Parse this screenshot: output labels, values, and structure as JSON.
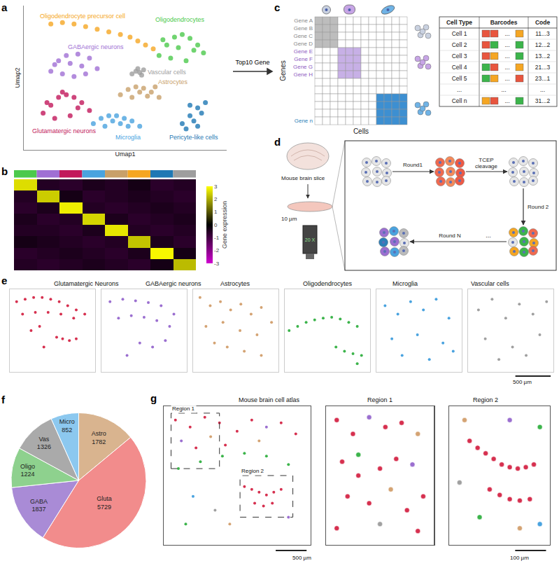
{
  "chart_data": [
    {
      "letter": "a",
      "type": "scatter",
      "xlabel": "Umap1",
      "ylabel": "Umap2",
      "xlim": [
        0,
        105
      ],
      "ylim": [
        0,
        110
      ],
      "tick_labels": false,
      "grid": false,
      "marker": "dot",
      "series": [
        {
          "name": "Oligodendrocyte precursor cell",
          "color": "#f5a623",
          "x": [
            14,
            20,
            26,
            32,
            38,
            44,
            50,
            55,
            59,
            63,
            67
          ],
          "y": [
            96,
            97,
            96,
            94,
            92,
            90,
            88,
            86,
            83,
            80,
            77
          ]
        },
        {
          "name": "Oligodendrocytes",
          "color": "#4cc94c",
          "x": [
            70,
            74,
            78,
            82,
            86,
            90,
            93,
            76,
            84,
            88,
            80,
            72
          ],
          "y": [
            72,
            80,
            86,
            88,
            85,
            80,
            74,
            70,
            68,
            76,
            78,
            84
          ]
        },
        {
          "name": "GABAergic neurons",
          "color": "#a06fd4",
          "x": [
            14,
            18,
            22,
            28,
            34,
            38,
            20,
            26,
            32,
            16,
            30,
            24
          ],
          "y": [
            60,
            68,
            72,
            73,
            70,
            62,
            58,
            56,
            58,
            65,
            64,
            66
          ]
        },
        {
          "name": "Vascular cells",
          "color": "#9e9e9e",
          "x": [
            56,
            58,
            60,
            62,
            59,
            61
          ],
          "y": [
            58,
            60,
            59,
            61,
            62,
            57
          ]
        },
        {
          "name": "Astrocytes",
          "color": "#c8a06a",
          "x": [
            50,
            54,
            58,
            62,
            66,
            70,
            56,
            64,
            60,
            68
          ],
          "y": [
            42,
            46,
            48,
            47,
            44,
            40,
            40,
            41,
            44,
            48
          ]
        },
        {
          "name": "Glutamatergic neurons",
          "color": "#c2185b",
          "x": [
            10,
            14,
            18,
            22,
            26,
            30,
            34,
            16,
            24,
            28,
            20,
            12
          ],
          "y": [
            28,
            34,
            40,
            42,
            40,
            36,
            30,
            24,
            26,
            32,
            44,
            36
          ]
        },
        {
          "name": "Microglia",
          "color": "#4aa3df",
          "x": [
            36,
            40,
            44,
            48,
            52,
            56,
            60,
            42,
            50,
            46,
            54
          ],
          "y": [
            20,
            24,
            26,
            26,
            24,
            22,
            18,
            18,
            20,
            22,
            18
          ]
        },
        {
          "name": "Pericyte-like cells",
          "color": "#1f78b4",
          "x": [
            82,
            86,
            90,
            94,
            84,
            88,
            92,
            86,
            90
          ],
          "y": [
            20,
            26,
            32,
            36,
            16,
            22,
            28,
            34,
            18
          ]
        }
      ]
    },
    {
      "letter": "b",
      "type": "heatmap",
      "colorbar_title": "Gene expression",
      "tick_labels": false,
      "z": [
        [
          2.6,
          -0.5,
          -0.6,
          -0.4,
          -0.5,
          -0.3,
          -0.6,
          -0.5
        ],
        [
          -0.5,
          2.4,
          -0.3,
          -0.6,
          -0.5,
          -0.4,
          -0.5,
          -0.6
        ],
        [
          -0.6,
          -0.4,
          2.8,
          -0.5,
          -0.6,
          -0.5,
          -0.4,
          -0.5
        ],
        [
          -0.4,
          -0.6,
          -0.5,
          2.5,
          -0.4,
          -0.6,
          -0.5,
          -0.4
        ],
        [
          -0.5,
          -0.5,
          -0.6,
          -0.4,
          2.7,
          -0.5,
          -0.6,
          -0.5
        ],
        [
          -0.3,
          -0.4,
          -0.5,
          -0.6,
          -0.5,
          2.3,
          -0.4,
          -0.6
        ],
        [
          -0.6,
          -0.5,
          -0.4,
          -0.5,
          -0.6,
          -0.4,
          2.9,
          -0.3
        ],
        [
          -0.5,
          -0.6,
          -0.5,
          -0.4,
          -0.5,
          -0.6,
          -0.3,
          2.2
        ]
      ],
      "zlim": [
        -3,
        3
      ],
      "zticks": [
        -3,
        -2,
        -1,
        0,
        1,
        2,
        3
      ],
      "column_colors": [
        "#4cc94c",
        "#a06fd4",
        "#c2185b",
        "#4aa3df",
        "#c8a06a",
        "#f5a623",
        "#1f78b4",
        "#9e9e9e"
      ]
    },
    {
      "letter": "e",
      "type": "scatter",
      "xlim": [
        0,
        100
      ],
      "ylim": [
        0,
        100
      ],
      "tick_labels": false,
      "marker": "dot",
      "scale_bar": "500 µm",
      "panels": [
        {
          "title": "Glutamatergic Neurons",
          "color": "#d6304f",
          "x": [
            8,
            18,
            28,
            38,
            48,
            58,
            68,
            78,
            88,
            15,
            30,
            45,
            60,
            75,
            55,
            62,
            70,
            78,
            40,
            25,
            35
          ],
          "y": [
            85,
            88,
            90,
            90,
            88,
            85,
            80,
            75,
            70,
            70,
            72,
            72,
            70,
            65,
            42,
            40,
            38,
            40,
            30,
            50,
            55
          ]
        },
        {
          "title": "GABAergic neurons",
          "color": "#9b6fd0",
          "x": [
            10,
            25,
            40,
            55,
            70,
            85,
            20,
            35,
            50,
            65,
            80,
            45,
            60,
            75,
            30
          ],
          "y": [
            85,
            88,
            86,
            84,
            80,
            70,
            65,
            68,
            66,
            62,
            55,
            35,
            30,
            38,
            20
          ]
        },
        {
          "title": "Astrocytes",
          "color": "#d4a373",
          "x": [
            8,
            20,
            32,
            44,
            56,
            68,
            80,
            92,
            15,
            35,
            55,
            75,
            40,
            60,
            80,
            25
          ],
          "y": [
            90,
            80,
            85,
            75,
            82,
            70,
            78,
            60,
            55,
            60,
            50,
            45,
            30,
            25,
            20,
            35
          ]
        },
        {
          "title": "Oligodendrocytes",
          "color": "#3cb44b",
          "x": [
            5,
            15,
            25,
            35,
            45,
            55,
            65,
            75,
            85,
            60,
            70,
            80,
            90,
            85
          ],
          "y": [
            50,
            55,
            60,
            63,
            65,
            66,
            64,
            60,
            55,
            30,
            25,
            22,
            20,
            10
          ]
        },
        {
          "title": "Microglia",
          "color": "#4aa3df",
          "x": [
            10,
            25,
            40,
            55,
            70,
            85,
            18,
            48,
            78,
            30,
            62,
            90
          ],
          "y": [
            80,
            70,
            85,
            75,
            88,
            65,
            40,
            45,
            35,
            20,
            15,
            25
          ]
        },
        {
          "title": "Vascular cells",
          "color": "#a0a0a0",
          "x": [
            12,
            28,
            44,
            60,
            76,
            92,
            20,
            52,
            84,
            36,
            68
          ],
          "y": [
            75,
            88,
            65,
            82,
            70,
            85,
            40,
            30,
            45,
            15,
            20
          ]
        }
      ]
    },
    {
      "letter": "f",
      "type": "pie",
      "data_labels": true,
      "categories": [
        "Astro",
        "Gluta",
        "GABA",
        "Oligo",
        "Vas",
        "Micro"
      ],
      "values": [
        1782,
        5729,
        1837,
        1224,
        1326,
        852
      ],
      "colors": [
        "#d9b48f",
        "#f28c8c",
        "#a98bd6",
        "#8ed18e",
        "#aaaaaa",
        "#8cc8ef"
      ]
    },
    {
      "letter": "g",
      "type": "scatter",
      "xlim": [
        0,
        100
      ],
      "ylim": [
        0,
        100
      ],
      "tick_labels": false,
      "marker": "dot",
      "colors": [
        "#d6304f",
        "#9b6fd0",
        "#d4a373",
        "#3cb44b",
        "#4aa3df",
        "#a0a0a0"
      ],
      "panels": [
        {
          "title": "Mouse brain cell atlas",
          "scale_bar": "500 µm",
          "x": [
            8,
            18,
            28,
            38,
            12,
            22,
            32,
            42,
            50,
            60,
            70,
            80,
            90,
            65,
            10,
            25,
            40,
            55,
            70,
            85,
            55,
            60,
            65,
            70,
            75,
            80,
            62,
            68,
            74,
            20,
            35,
            45,
            85,
            15
          ],
          "y": [
            90,
            85,
            92,
            88,
            75,
            70,
            78,
            72,
            82,
            90,
            85,
            88,
            80,
            75,
            55,
            60,
            64,
            66,
            64,
            58,
            42,
            40,
            38,
            36,
            38,
            40,
            30,
            28,
            30,
            35,
            25,
            15,
            20,
            15
          ],
          "c": [
            0,
            0,
            0,
            0,
            1,
            0,
            2,
            0,
            0,
            0,
            1,
            0,
            0,
            2,
            3,
            3,
            3,
            3,
            3,
            3,
            0,
            0,
            0,
            0,
            0,
            0,
            0,
            0,
            0,
            4,
            5,
            2,
            1,
            3
          ],
          "regions": [
            {
              "label": "Region 1",
              "box": [
                5,
                38,
                55,
                95
              ]
            },
            {
              "label": "Region 2",
              "box": [
                52,
                88,
                20,
                50
              ]
            }
          ]
        },
        {
          "title": "Region 1",
          "x": [
            10,
            25,
            40,
            55,
            70,
            85,
            15,
            30,
            50,
            65,
            80,
            20,
            40,
            60,
            75,
            90,
            10,
            50,
            30,
            85
          ],
          "y": [
            90,
            80,
            92,
            85,
            88,
            80,
            60,
            65,
            55,
            62,
            58,
            35,
            30,
            40,
            25,
            35,
            12,
            15,
            50,
            10
          ],
          "c": [
            0,
            0,
            1,
            0,
            0,
            2,
            0,
            3,
            0,
            0,
            1,
            0,
            0,
            2,
            0,
            0,
            0,
            5,
            0,
            0
          ]
        },
        {
          "title": "Region 2",
          "scale_bar": "100 µm",
          "x": [
            20,
            28,
            36,
            44,
            52,
            60,
            68,
            76,
            84,
            40,
            50,
            60,
            70,
            80,
            15,
            60,
            90,
            30,
            70,
            10,
            90
          ],
          "y": [
            75,
            70,
            66,
            62,
            58,
            56,
            55,
            56,
            58,
            40,
            36,
            33,
            32,
            33,
            90,
            90,
            85,
            20,
            12,
            45,
            15
          ],
          "c": [
            0,
            0,
            0,
            0,
            0,
            0,
            0,
            0,
            0,
            0,
            0,
            0,
            0,
            0,
            2,
            1,
            3,
            3,
            2,
            5,
            4
          ]
        }
      ]
    }
  ],
  "transition": "Top10 Gene",
  "diagrams": {
    "c": {
      "letter": "c",
      "ylabel": "Genes",
      "xlabel": "Cells",
      "genes": [
        "Gene A",
        "Gene B",
        "Gene C",
        "Gene D",
        "Gene E",
        "Gene F",
        "Gene G",
        "Gene H",
        "Gene n"
      ],
      "gene_colors": [
        "#888888",
        "#888888",
        "#888888",
        "#888888",
        "#8e5bbf",
        "#8e5bbf",
        "#8e5bbf",
        "#8e5bbf",
        "#2c7fb8"
      ],
      "table": {
        "header": [
          "Cell Type",
          "Barcodes",
          "Code"
        ],
        "rows": [
          [
            "Cell 1",
            "11...3"
          ],
          [
            "Cell 2",
            "12...2"
          ],
          [
            "Cell 3",
            "13...2"
          ],
          [
            "Cell 4",
            "21...3"
          ],
          [
            "Cell 5",
            "23...1"
          ],
          [
            "...",
            "..."
          ],
          [
            "Cell n",
            "31...2"
          ]
        ],
        "barcode_gap": "...",
        "digit_colors": {
          "1": "#e8553e",
          "2": "#3cb44b",
          "3": "#f5a623"
        }
      }
    },
    "d": {
      "letter": "d",
      "slice_label": "Mouse brain slice",
      "thickness": "10 µm",
      "objective": "20 X",
      "steps": {
        "round1": "Round1",
        "cleavage": "TCEP cleavage",
        "round2": "Round 2",
        "gap": "...",
        "roundN": "Round N"
      }
    }
  }
}
